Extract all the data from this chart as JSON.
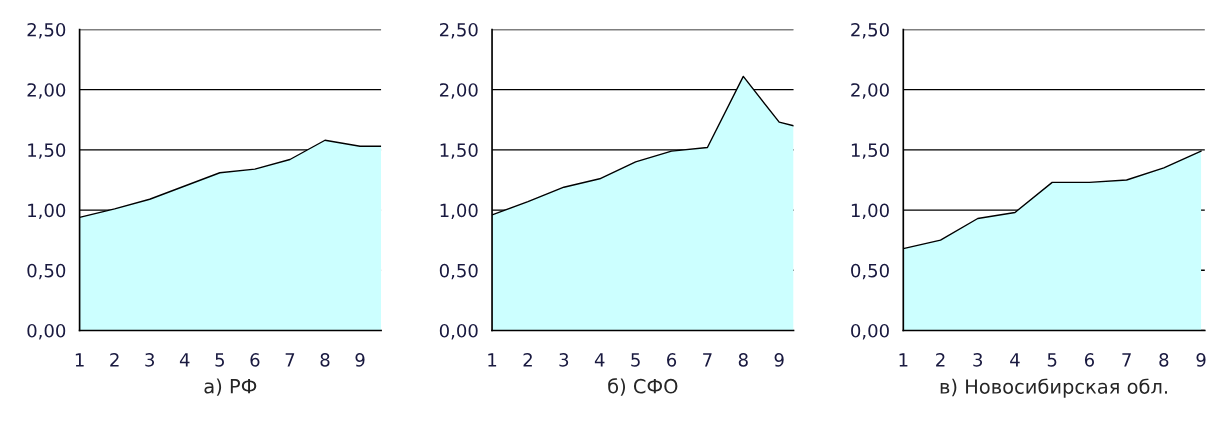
{
  "chart_data": [
    {
      "type": "area",
      "xlabel": "а) РФ",
      "x": [
        1,
        2,
        3,
        4,
        5,
        6,
        7,
        8,
        9,
        9.6
      ],
      "series": [
        {
          "color": "#ccffff",
          "values": [
            0.94,
            1.01,
            1.09,
            1.2,
            1.31,
            1.34,
            1.42,
            1.58,
            1.53,
            1.53
          ]
        }
      ],
      "xlim": [
        1,
        9.6
      ],
      "xticks": [
        1,
        2,
        3,
        4,
        5,
        6,
        7,
        8,
        9
      ],
      "ylim": [
        0,
        2.5
      ],
      "yticks": [
        {
          "value": 0,
          "label": "0,00"
        },
        {
          "value": 0.5,
          "label": "0,50"
        },
        {
          "value": 1,
          "label": "1,00"
        },
        {
          "value": 1.5,
          "label": "1,50"
        },
        {
          "value": 2,
          "label": "2,00"
        },
        {
          "value": 2.5,
          "label": "2,50"
        }
      ],
      "grid": "y"
    },
    {
      "type": "area",
      "xlabel": "б) СФО",
      "x": [
        1,
        2,
        3,
        4,
        5,
        6,
        7,
        8,
        9,
        9.4
      ],
      "series": [
        {
          "color": "#ccffff",
          "values": [
            0.96,
            1.07,
            1.19,
            1.26,
            1.4,
            1.49,
            1.52,
            2.11,
            1.73,
            1.7
          ]
        }
      ],
      "xlim": [
        1,
        9.4
      ],
      "xticks": [
        1,
        2,
        3,
        4,
        5,
        6,
        7,
        8,
        9
      ],
      "ylim": [
        0,
        2.5
      ],
      "yticks": [
        {
          "value": 0,
          "label": "0,00"
        },
        {
          "value": 0.5,
          "label": "0,50"
        },
        {
          "value": 1,
          "label": "1,00"
        },
        {
          "value": 1.5,
          "label": "1,50"
        },
        {
          "value": 2,
          "label": "2,00"
        },
        {
          "value": 2.5,
          "label": "2,50"
        }
      ],
      "grid": "y"
    },
    {
      "type": "area",
      "xlabel": "в) Новосибирская обл.",
      "x": [
        1,
        2,
        3,
        4,
        5,
        6,
        7,
        8,
        9
      ],
      "series": [
        {
          "color": "#ccffff",
          "values": [
            0.68,
            0.75,
            0.93,
            0.98,
            1.23,
            1.23,
            1.25,
            1.35,
            1.49
          ]
        }
      ],
      "xlim": [
        1,
        9.1
      ],
      "xticks": [
        1,
        2,
        3,
        4,
        5,
        6,
        7,
        8,
        9
      ],
      "ylim": [
        0,
        2.5
      ],
      "yticks": [
        {
          "value": 0,
          "label": "0,00"
        },
        {
          "value": 0.5,
          "label": "0,50"
        },
        {
          "value": 1,
          "label": "1,00"
        },
        {
          "value": 1.5,
          "label": "1,50"
        },
        {
          "value": 2,
          "label": "2,00"
        },
        {
          "value": 2.5,
          "label": "2,50"
        }
      ],
      "grid": "y"
    }
  ]
}
